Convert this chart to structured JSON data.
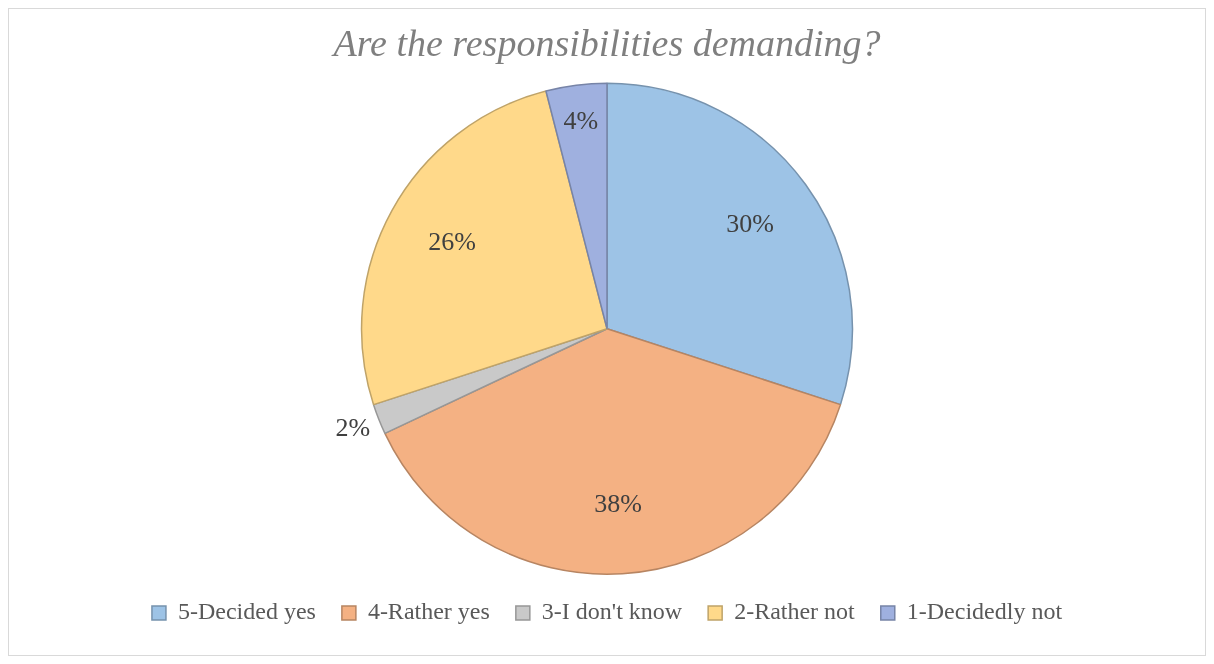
{
  "chart_data": {
    "type": "pie",
    "title": "Are the responsibilities demanding?",
    "categories": [
      "5-Decided yes",
      "4-Rather yes",
      "3-I don't know",
      "2-Rather not",
      "1-Decidedly not"
    ],
    "values": [
      30,
      38,
      2,
      26,
      4
    ],
    "value_labels": [
      "30%",
      "38%",
      "2%",
      "26%",
      "4%"
    ],
    "colors": [
      "#9dc3e6",
      "#f4b183",
      "#c9c9c9",
      "#ffd98a",
      "#9fb0df"
    ],
    "legend": "bottom"
  }
}
